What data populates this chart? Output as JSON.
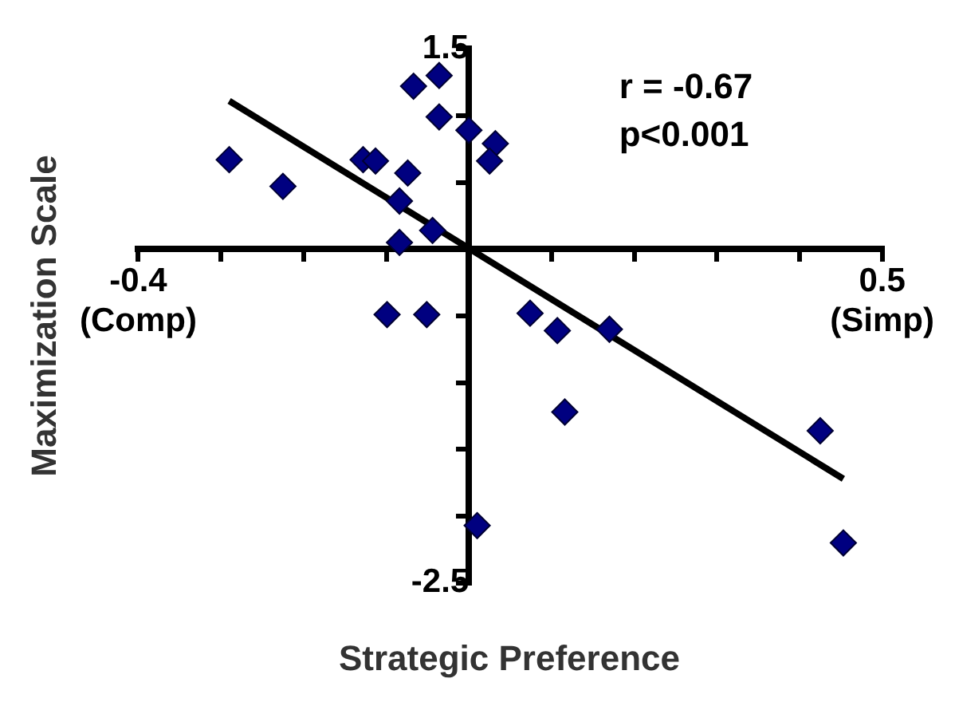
{
  "chart_data": {
    "type": "scatter",
    "xlabel": "Strategic Preference",
    "ylabel": "Maximization Scale",
    "annotations": [
      "r = -0.67",
      "p<0.001"
    ],
    "xlim": [
      -0.4,
      0.5
    ],
    "ylim": [
      -2.5,
      1.5
    ],
    "xticks": [
      {
        "value": -0.4,
        "label": "-0.4\n(Comp)"
      },
      {
        "value": -0.3,
        "label": null
      },
      {
        "value": -0.2,
        "label": null
      },
      {
        "value": -0.1,
        "label": null
      },
      {
        "value": 0.1,
        "label": null
      },
      {
        "value": 0.2,
        "label": null
      },
      {
        "value": 0.3,
        "label": null
      },
      {
        "value": 0.4,
        "label": null
      },
      {
        "value": 0.5,
        "label": "0.5\n(Simp)"
      }
    ],
    "yticks": [
      -2.5,
      {
        "value": -2,
        "label": null
      },
      {
        "value": -1.5,
        "label": null
      },
      {
        "value": -1,
        "label": null
      },
      {
        "value": -0.5,
        "label": null
      },
      {
        "value": 0.5,
        "label": null
      },
      {
        "value": 1,
        "label": null
      },
      1.5
    ],
    "grid": false,
    "legend": false,
    "series": [
      {
        "type": "scatter",
        "color": "#000080",
        "marker": "diamond",
        "x": [
          -0.29,
          -0.225,
          -0.128,
          -0.113,
          -0.074,
          -0.084,
          -0.044,
          -0.084,
          -0.067,
          -0.036,
          -0.036,
          0.0,
          0.032,
          0.025,
          -0.099,
          -0.051,
          0.074,
          0.107,
          0.17,
          0.116,
          0.425,
          0.01,
          0.453
        ],
        "values": [
          0.67,
          0.47,
          0.67,
          0.66,
          0.57,
          0.36,
          0.14,
          0.05,
          1.22,
          1.3,
          0.99,
          0.89,
          0.79,
          0.66,
          -0.49,
          -0.49,
          -0.48,
          -0.61,
          -0.6,
          -1.22,
          -1.36,
          -2.07,
          -2.2
        ]
      },
      {
        "type": "line",
        "color": "#000000",
        "marker": "none",
        "line_style": "solid",
        "x": [
          -0.29,
          0.453
        ],
        "values": [
          1.11,
          -1.72
        ]
      }
    ]
  }
}
